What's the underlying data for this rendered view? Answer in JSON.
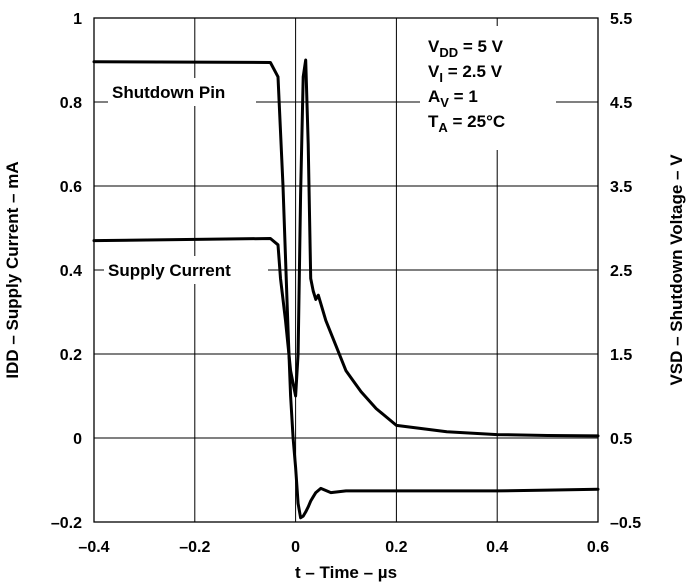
{
  "chart_data": {
    "type": "line",
    "title": "",
    "xlabel": "t – Time – µs",
    "ylabel_left": "IDD – Supply Current – mA",
    "ylabel_right": "VSD – Shutdown Voltage – V",
    "xlim": [
      -0.4,
      0.6
    ],
    "ylim_left": [
      -0.2,
      1.0
    ],
    "ylim_right": [
      -0.5,
      5.5
    ],
    "x_ticks": [
      "–0.4",
      "–0.2",
      "0",
      "0.2",
      "0.4",
      "0.6"
    ],
    "y_left_ticks": [
      "–0.2",
      "0",
      "0.2",
      "0.4",
      "0.6",
      "0.8",
      "1"
    ],
    "y_right_ticks": [
      "–0.5",
      "0.5",
      "1.5",
      "2.5",
      "3.5",
      "4.5",
      "5.5"
    ],
    "grid": true,
    "conditions": {
      "vdd": {
        "prefix": "V",
        "sub": "DD",
        "suffix": " = 5 V"
      },
      "vi": {
        "prefix": "V",
        "sub": "I",
        "suffix": " = 2.5 V"
      },
      "av": {
        "prefix": "A",
        "sub": "V",
        "suffix": " = 1"
      },
      "ta": {
        "prefix": "T",
        "sub": "A",
        "suffix": " = 25°C"
      }
    },
    "series": [
      {
        "name": "Shutdown Pin",
        "axis": "right",
        "x": [
          -0.4,
          -0.05,
          -0.035,
          -0.025,
          -0.015,
          -0.01,
          -0.005,
          0.0,
          0.005,
          0.01,
          0.015,
          0.02,
          0.025,
          0.03,
          0.035,
          0.04,
          0.05,
          0.07,
          0.1,
          0.15,
          0.2,
          0.3,
          0.4,
          0.5,
          0.6
        ],
        "y": [
          4.98,
          4.97,
          4.8,
          3.5,
          1.8,
          1.0,
          0.5,
          0.15,
          -0.28,
          -0.45,
          -0.43,
          -0.38,
          -0.32,
          -0.25,
          -0.2,
          -0.15,
          -0.1,
          -0.15,
          -0.13,
          -0.13,
          -0.13,
          -0.13,
          -0.13,
          -0.12,
          -0.11
        ]
      },
      {
        "name": "Supply Current",
        "axis": "left",
        "x": [
          -0.4,
          -0.05,
          -0.035,
          -0.03,
          -0.02,
          -0.01,
          0.0,
          0.005,
          0.01,
          0.015,
          0.02,
          0.025,
          0.03,
          0.035,
          0.04,
          0.045,
          0.05,
          0.06,
          0.08,
          0.1,
          0.13,
          0.16,
          0.2,
          0.3,
          0.4,
          0.5,
          0.6
        ],
        "y": [
          0.47,
          0.475,
          0.46,
          0.38,
          0.28,
          0.16,
          0.1,
          0.2,
          0.58,
          0.86,
          0.9,
          0.7,
          0.38,
          0.35,
          0.33,
          0.34,
          0.32,
          0.28,
          0.22,
          0.16,
          0.11,
          0.07,
          0.03,
          0.015,
          0.008,
          0.006,
          0.005
        ]
      }
    ],
    "annotations": [
      "Shutdown Pin",
      "Supply Current"
    ]
  }
}
